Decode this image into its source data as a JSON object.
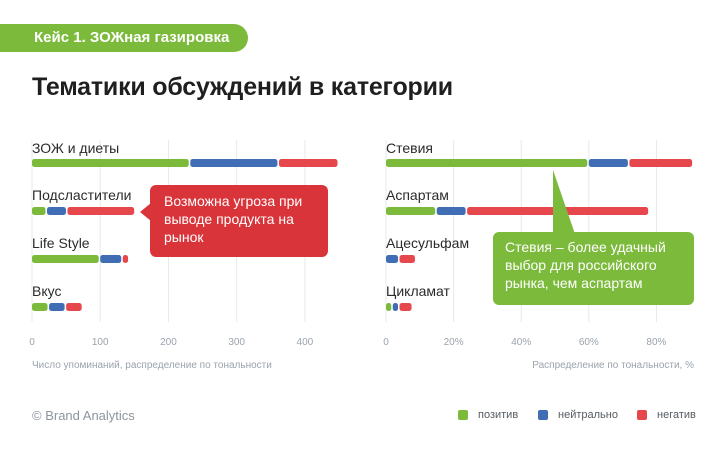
{
  "header": {
    "case_label": "Кейс 1. ЗОЖная газировка",
    "title": "Тематики обсуждений в категории"
  },
  "colors": {
    "positive": "#7cba3c",
    "neutral": "#3f6eb5",
    "negative": "#e5474c",
    "callout_red": "#d9343a",
    "callout_green": "#7cba3c"
  },
  "chart_data": [
    {
      "type": "bar",
      "orientation": "horizontal",
      "stacked": true,
      "categories": [
        "ЗОЖ и диеты",
        "Подсластители",
        "Life Style",
        "Вкус"
      ],
      "series": [
        {
          "name": "позитив",
          "values": [
            232,
            22,
            100,
            25
          ]
        },
        {
          "name": "нейтрально",
          "values": [
            130,
            30,
            33,
            25
          ]
        },
        {
          "name": "негатив",
          "values": [
            88,
            100,
            10,
            25
          ]
        }
      ],
      "xticks": [
        "0",
        "100",
        "200",
        "300",
        "400"
      ],
      "xlim": [
        0,
        450
      ],
      "xlabel": "Число упоминаний, распределение по тональности",
      "grid": true
    },
    {
      "type": "bar",
      "orientation": "horizontal",
      "stacked": true,
      "categories": [
        "Стевия",
        "Аспартам",
        "Ацесульфам",
        "Цикламат"
      ],
      "series": [
        {
          "name": "позитив",
          "values": [
            60,
            15,
            0,
            2
          ]
        },
        {
          "name": "нейтрально",
          "values": [
            12,
            9,
            4,
            2
          ]
        },
        {
          "name": "негатив",
          "values": [
            19,
            54,
            5,
            4
          ]
        }
      ],
      "xticks": [
        "0",
        "20%",
        "40%",
        "60%",
        "80%"
      ],
      "xlim": [
        0,
        92
      ],
      "xlabel": "Распределение по тональности, %",
      "grid": true
    }
  ],
  "callouts": {
    "red": "Возможна угроза при выводе продукта на рынок",
    "green": "Стевия – более удачный выбор для российского рынка, чем аспартам"
  },
  "footer": {
    "copyright": "© Brand Analytics",
    "legend": [
      "позитив",
      "нейтрально",
      "негатив"
    ]
  }
}
